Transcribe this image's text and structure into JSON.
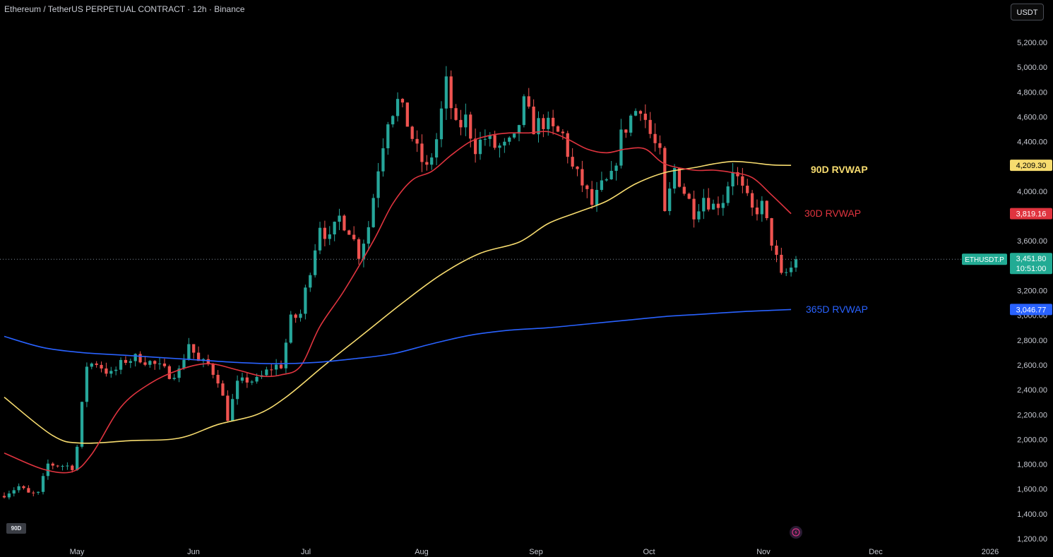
{
  "header": {
    "title": "Ethereum / TetherUS PERPETUAL CONTRACT · 12h · Binance",
    "currency_button": "USDT",
    "range_badge": "90D"
  },
  "colors": {
    "background": "#000000",
    "candle_up": "#26a69a",
    "candle_down": "#ef5350",
    "rvwap_90d": "#f7dc6f",
    "rvwap_30d": "#e0343f",
    "rvwap_365d": "#2962ff",
    "last_price_bg": "#22ab94"
  },
  "chart_data": {
    "type": "candlestick",
    "symbol": "ETHUSDT.P",
    "interval": "12h",
    "x_axis": {
      "tick_labels": [
        "May",
        "Jun",
        "Jul",
        "Aug",
        "Sep",
        "Oct",
        "Nov",
        "Dec",
        "2026"
      ]
    },
    "y_axis": {
      "ylim": [
        1200,
        5400
      ],
      "tick_labels": [
        "5,200.00",
        "5,000.00",
        "4,800.00",
        "4,600.00",
        "4,400.00",
        "4,000.00",
        "3,600.00",
        "3,200.00",
        "3,000.00",
        "2,800.00",
        "2,600.00",
        "2,400.00",
        "2,200.00",
        "2,000.00",
        "1,800.00",
        "1,600.00",
        "1,400.00",
        "1,200.00"
      ],
      "tick_values": [
        5200,
        5000,
        4800,
        4600,
        4400,
        4000,
        3600,
        3200,
        3000,
        2800,
        2600,
        2400,
        2200,
        2000,
        1800,
        1600,
        1400,
        1200
      ],
      "position": "right"
    },
    "close_path": [
      [
        0,
        1560
      ],
      [
        3,
        1620
      ],
      [
        5,
        1560
      ],
      [
        7,
        1560
      ],
      [
        9,
        1800
      ],
      [
        12,
        1790
      ],
      [
        14,
        1780
      ],
      [
        15,
        1940
      ],
      [
        17,
        2600
      ],
      [
        19,
        2620
      ],
      [
        22,
        2520
      ],
      [
        25,
        2640
      ],
      [
        28,
        2660
      ],
      [
        31,
        2600
      ],
      [
        34,
        2530
      ],
      [
        36,
        2550
      ],
      [
        38,
        2780
      ],
      [
        40,
        2620
      ],
      [
        42,
        2600
      ],
      [
        44,
        2490
      ],
      [
        46,
        2180
      ],
      [
        48,
        2440
      ],
      [
        50,
        2480
      ],
      [
        52,
        2470
      ],
      [
        55,
        2580
      ],
      [
        57,
        2600
      ],
      [
        59,
        2960
      ],
      [
        61,
        3010
      ],
      [
        63,
        3380
      ],
      [
        65,
        3740
      ],
      [
        67,
        3600
      ],
      [
        69,
        3790
      ],
      [
        71,
        3700
      ],
      [
        73,
        3500
      ],
      [
        75,
        3720
      ],
      [
        77,
        4200
      ],
      [
        79,
        4600
      ],
      [
        81,
        4720
      ],
      [
        83,
        4550
      ],
      [
        85,
        4320
      ],
      [
        87,
        4170
      ],
      [
        89,
        4420
      ],
      [
        91,
        4860
      ],
      [
        93,
        4500
      ],
      [
        95,
        4580
      ],
      [
        97,
        4360
      ],
      [
        99,
        4430
      ],
      [
        101,
        4360
      ],
      [
        103,
        4350
      ],
      [
        105,
        4400
      ],
      [
        107,
        4700
      ],
      [
        109,
        4520
      ],
      [
        111,
        4560
      ],
      [
        113,
        4480
      ],
      [
        115,
        4450
      ],
      [
        117,
        4180
      ],
      [
        119,
        4060
      ],
      [
        121,
        3890
      ],
      [
        123,
        4030
      ],
      [
        125,
        4100
      ],
      [
        127,
        4440
      ],
      [
        129,
        4600
      ],
      [
        131,
        4700
      ],
      [
        133,
        4460
      ],
      [
        135,
        4280
      ],
      [
        136,
        3800
      ],
      [
        138,
        4180
      ],
      [
        140,
        4000
      ],
      [
        142,
        3840
      ],
      [
        144,
        3960
      ],
      [
        146,
        3880
      ],
      [
        148,
        3940
      ],
      [
        150,
        4190
      ],
      [
        152,
        4000
      ],
      [
        154,
        3840
      ],
      [
        156,
        3880
      ],
      [
        158,
        3600
      ],
      [
        160,
        3300
      ],
      [
        162,
        3380
      ],
      [
        163,
        3450
      ]
    ],
    "candle_count": 164,
    "last_price": "3,451.80",
    "last_price_value": 3451.8,
    "last_price_countdown": "10:51:00",
    "series": [
      {
        "name": "90D RVWAP",
        "color": "#f7dc6f",
        "last_value": 4209.3,
        "last_label": "4,209.30",
        "points": [
          [
            0,
            2340
          ],
          [
            10,
            2030
          ],
          [
            16,
            1970
          ],
          [
            26,
            1990
          ],
          [
            36,
            2010
          ],
          [
            44,
            2120
          ],
          [
            52,
            2200
          ],
          [
            58,
            2340
          ],
          [
            66,
            2600
          ],
          [
            74,
            2850
          ],
          [
            82,
            3100
          ],
          [
            90,
            3330
          ],
          [
            98,
            3500
          ],
          [
            106,
            3590
          ],
          [
            112,
            3740
          ],
          [
            118,
            3830
          ],
          [
            124,
            3920
          ],
          [
            130,
            4060
          ],
          [
            136,
            4150
          ],
          [
            142,
            4190
          ],
          [
            146,
            4220
          ],
          [
            150,
            4240
          ],
          [
            154,
            4230
          ],
          [
            158,
            4212
          ],
          [
            162,
            4209
          ]
        ]
      },
      {
        "name": "30D RVWAP",
        "color": "#e0343f",
        "last_value": 3819.16,
        "last_label": "3,819.16",
        "points": [
          [
            0,
            1890
          ],
          [
            8,
            1760
          ],
          [
            14,
            1740
          ],
          [
            18,
            1880
          ],
          [
            24,
            2260
          ],
          [
            30,
            2450
          ],
          [
            36,
            2560
          ],
          [
            42,
            2610
          ],
          [
            48,
            2560
          ],
          [
            53,
            2510
          ],
          [
            57,
            2520
          ],
          [
            61,
            2590
          ],
          [
            65,
            2910
          ],
          [
            70,
            3200
          ],
          [
            76,
            3600
          ],
          [
            80,
            3900
          ],
          [
            84,
            4090
          ],
          [
            88,
            4160
          ],
          [
            92,
            4290
          ],
          [
            96,
            4400
          ],
          [
            100,
            4450
          ],
          [
            104,
            4470
          ],
          [
            108,
            4470
          ],
          [
            112,
            4480
          ],
          [
            116,
            4420
          ],
          [
            120,
            4340
          ],
          [
            124,
            4310
          ],
          [
            128,
            4340
          ],
          [
            132,
            4340
          ],
          [
            136,
            4220
          ],
          [
            142,
            4170
          ],
          [
            146,
            4170
          ],
          [
            150,
            4150
          ],
          [
            154,
            4110
          ],
          [
            158,
            3970
          ],
          [
            162,
            3819
          ]
        ]
      },
      {
        "name": "365D RVWAP",
        "color": "#2962ff",
        "last_value": 3046.77,
        "last_label": "3,046.77",
        "points": [
          [
            0,
            2830
          ],
          [
            8,
            2740
          ],
          [
            16,
            2700
          ],
          [
            24,
            2680
          ],
          [
            32,
            2660
          ],
          [
            40,
            2640
          ],
          [
            48,
            2620
          ],
          [
            56,
            2610
          ],
          [
            64,
            2620
          ],
          [
            72,
            2650
          ],
          [
            80,
            2690
          ],
          [
            88,
            2770
          ],
          [
            96,
            2840
          ],
          [
            104,
            2880
          ],
          [
            112,
            2900
          ],
          [
            120,
            2930
          ],
          [
            128,
            2960
          ],
          [
            136,
            2990
          ],
          [
            144,
            3010
          ],
          [
            152,
            3030
          ],
          [
            158,
            3040
          ],
          [
            162,
            3047
          ]
        ]
      }
    ],
    "grid": false,
    "legend": "inline-right"
  }
}
